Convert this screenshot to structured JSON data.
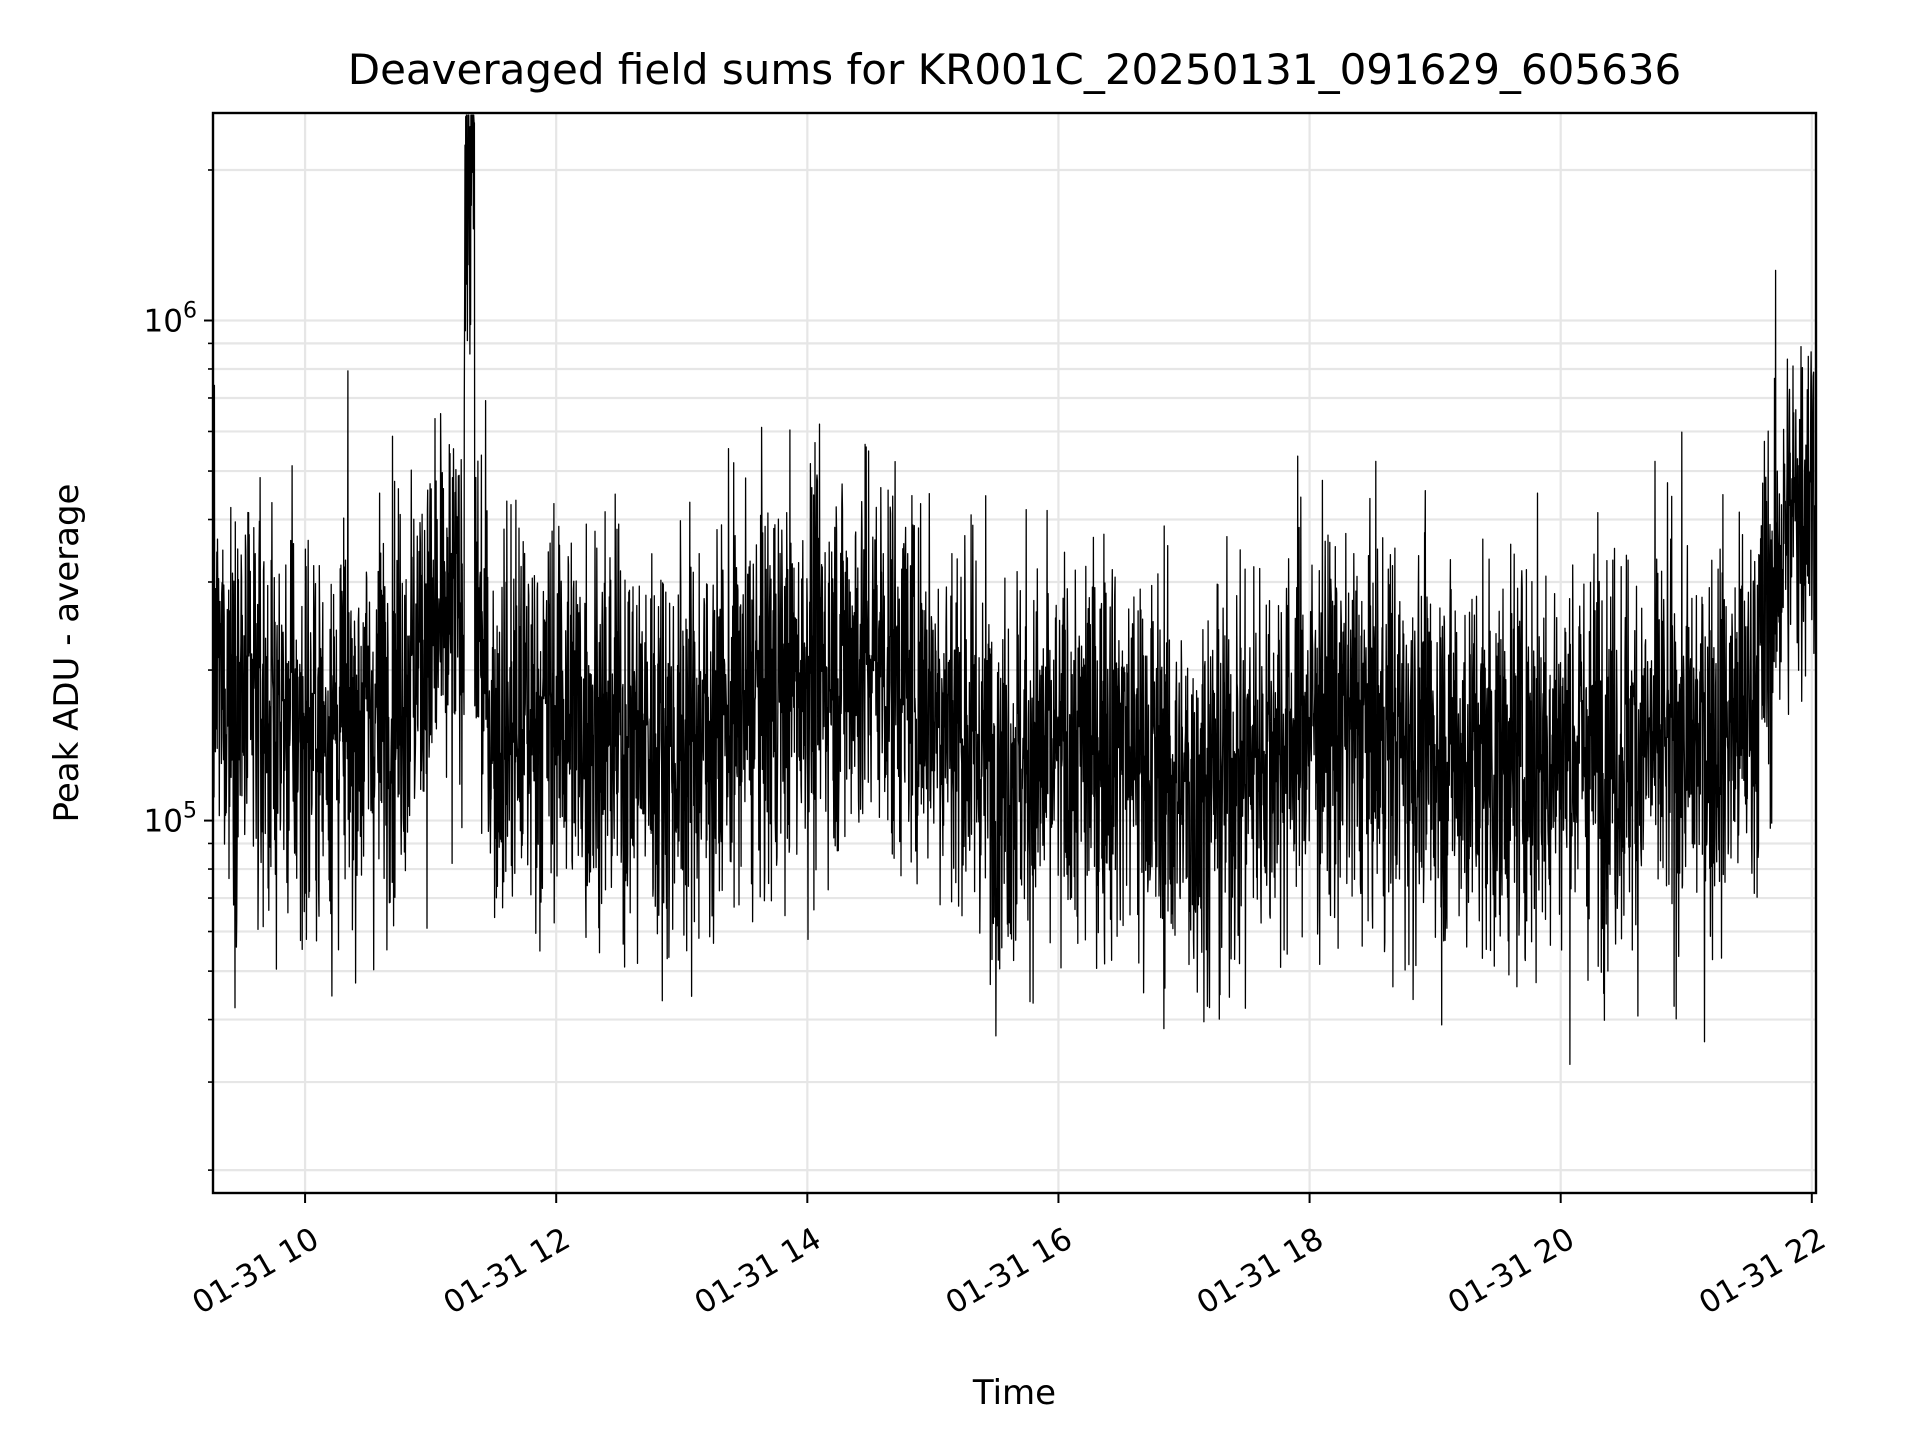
{
  "chart_data": {
    "type": "line",
    "title": "Deaveraged field sums for KR001C_20250131_091629_605636",
    "xlabel": "Time",
    "ylabel": "Peak ADU - average",
    "yscale": "log",
    "grid": true,
    "xlim": [
      "2025-01-31T09:16",
      "2025-01-31T22:02"
    ],
    "ylim": [
      18000,
      2600000
    ],
    "x_ticks": [
      "01-31 10",
      "01-31 12",
      "01-31 14",
      "01-31 16",
      "01-31 18",
      "01-31 20",
      "01-31 22"
    ],
    "y_ticks": [
      {
        "base": "10",
        "exp": "5",
        "value": 100000
      },
      {
        "base": "10",
        "exp": "6",
        "value": 1000000
      }
    ],
    "series": [
      {
        "color": "#000000",
        "x": [
          "2025-01-31T09:16",
          "2025-01-31T09:30",
          "2025-01-31T10:00",
          "2025-01-31T10:30",
          "2025-01-31T11:00",
          "2025-01-31T11:15",
          "2025-01-31T11:20",
          "2025-01-31T11:30",
          "2025-01-31T12:00",
          "2025-01-31T12:30",
          "2025-01-31T13:00",
          "2025-01-31T13:30",
          "2025-01-31T14:00",
          "2025-01-31T14:30",
          "2025-01-31T15:00",
          "2025-01-31T15:30",
          "2025-01-31T16:00",
          "2025-01-31T16:30",
          "2025-01-31T17:00",
          "2025-01-31T17:30",
          "2025-01-31T18:00",
          "2025-01-31T18:30",
          "2025-01-31T19:00",
          "2025-01-31T19:30",
          "2025-01-31T20:00",
          "2025-01-31T20:30",
          "2025-01-31T21:00",
          "2025-01-31T21:30",
          "2025-01-31T21:45",
          "2025-01-31T22:00"
        ],
        "y": [
          200000,
          170000,
          150000,
          160000,
          230000,
          260000,
          300000,
          150000,
          170000,
          150000,
          140000,
          170000,
          200000,
          220000,
          180000,
          130000,
          130000,
          150000,
          110000,
          130000,
          160000,
          150000,
          140000,
          130000,
          140000,
          140000,
          140000,
          160000,
          350000,
          500000
        ]
      }
    ]
  }
}
